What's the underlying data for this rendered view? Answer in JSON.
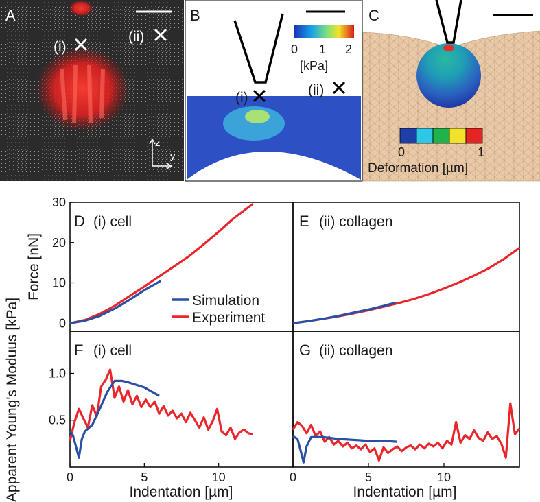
{
  "figure": {
    "panel_letters": [
      "A",
      "B",
      "C",
      "D",
      "E",
      "F",
      "G"
    ],
    "markers": {
      "i": "(i)",
      "ii": "(ii)"
    },
    "panel_a": {
      "axis_z": "z",
      "axis_y": "y"
    },
    "panel_b": {
      "colorbar_ticks": [
        "0",
        "1",
        "2"
      ],
      "colorbar_unit": "[kPa]"
    },
    "panel_c": {
      "colorbar_ticks": [
        "0",
        "1"
      ],
      "colorbar_label": "Deformation [µm]"
    }
  },
  "colors": {
    "simulation": "#2a4fa3",
    "experiment": "#e8262b",
    "cell_red": "#ff2a2a",
    "gel": "#e9c9a6"
  },
  "chart_data": [
    {
      "id": "D",
      "type": "line",
      "title": "(i) cell",
      "xlabel": "",
      "ylabel": "Force [nN]",
      "xlim": [
        0,
        15
      ],
      "ylim": [
        -2,
        30
      ],
      "xticks": [],
      "yticks": [
        0,
        10,
        20,
        30
      ],
      "legend": {
        "placement": "lower-right",
        "entries": [
          "Simulation",
          "Experiment"
        ]
      },
      "series": [
        {
          "name": "Simulation",
          "x": [
            0,
            1,
            2,
            3,
            4,
            5,
            6.1
          ],
          "y": [
            0,
            0.6,
            1.8,
            3.6,
            5.8,
            8.2,
            10.5
          ]
        },
        {
          "name": "Experiment",
          "x": [
            0,
            1,
            2,
            3,
            4,
            5,
            6,
            7,
            8,
            9,
            10,
            11,
            12.3
          ],
          "y": [
            0,
            0.8,
            2.3,
            4.3,
            6.7,
            9.1,
            11.6,
            14.1,
            16.6,
            19.6,
            22.7,
            26.0,
            29.6
          ]
        }
      ]
    },
    {
      "id": "E",
      "type": "line",
      "title": "(ii) collagen",
      "xlabel": "",
      "ylabel": "",
      "xlim": [
        0,
        15
      ],
      "ylim": [
        -2,
        30
      ],
      "xticks": [],
      "yticks": [],
      "series": [
        {
          "name": "Simulation",
          "x": [
            0,
            1,
            2,
            3,
            4,
            5,
            6,
            6.8
          ],
          "y": [
            0,
            0.5,
            1.1,
            1.8,
            2.6,
            3.4,
            4.3,
            5.1
          ]
        },
        {
          "name": "Experiment",
          "x": [
            0,
            1,
            2,
            3,
            4,
            5,
            6,
            7,
            8,
            9,
            10,
            11,
            12,
            13,
            14,
            15
          ],
          "y": [
            0,
            0.5,
            1.1,
            1.7,
            2.4,
            3.2,
            4.1,
            5.0,
            6.0,
            7.2,
            8.6,
            10.1,
            11.8,
            13.7,
            16.0,
            18.7
          ]
        }
      ]
    },
    {
      "id": "F",
      "type": "line",
      "title": "(i) cell",
      "xlabel": "Indentation [µm]",
      "ylabel": "Apparent Young's Moduus [kPa]",
      "xlim": [
        0,
        15
      ],
      "ylim": [
        0,
        1.45
      ],
      "xticks": [
        0,
        5,
        10
      ],
      "yticks": [
        0.5,
        1.0
      ],
      "series": [
        {
          "name": "Simulation",
          "x": [
            0,
            0.2,
            0.4,
            0.6,
            0.8,
            1.0,
            1.5,
            2.0,
            2.5,
            3.0,
            3.5,
            4.0,
            5.0,
            6.0
          ],
          "y": [
            0.38,
            0.34,
            0.22,
            0.1,
            0.3,
            0.38,
            0.45,
            0.62,
            0.8,
            0.92,
            0.92,
            0.9,
            0.85,
            0.76
          ]
        },
        {
          "name": "Experiment",
          "x": [
            0,
            0.3,
            0.6,
            0.9,
            1.2,
            1.5,
            1.8,
            2.1,
            2.4,
            2.7,
            3.0,
            3.3,
            3.6,
            3.9,
            4.2,
            4.5,
            4.8,
            5.1,
            5.4,
            5.7,
            6.0,
            6.3,
            6.6,
            6.9,
            7.2,
            7.5,
            7.8,
            8.1,
            8.4,
            8.7,
            9.0,
            9.3,
            9.6,
            9.9,
            10.2,
            10.5,
            10.8,
            11.1,
            11.4,
            11.7,
            12.0,
            12.3
          ],
          "y": [
            0.28,
            0.48,
            0.62,
            0.52,
            0.42,
            0.66,
            0.54,
            0.86,
            0.93,
            1.04,
            0.74,
            0.86,
            0.7,
            0.82,
            0.67,
            0.76,
            0.64,
            0.72,
            0.64,
            0.7,
            0.57,
            0.65,
            0.55,
            0.6,
            0.52,
            0.57,
            0.48,
            0.58,
            0.5,
            0.42,
            0.53,
            0.4,
            0.49,
            0.62,
            0.38,
            0.34,
            0.42,
            0.3,
            0.37,
            0.4,
            0.36,
            0.35
          ]
        }
      ]
    },
    {
      "id": "G",
      "type": "line",
      "title": "(ii) collagen",
      "xlabel": "Indentation [µm]",
      "ylabel": "",
      "xlim": [
        0,
        15
      ],
      "ylim": [
        0,
        1.45
      ],
      "xticks": [
        0,
        5,
        10
      ],
      "yticks": [],
      "series": [
        {
          "name": "Simulation",
          "x": [
            0,
            0.3,
            0.5,
            0.7,
            0.9,
            1.2,
            2,
            3,
            4,
            5,
            6,
            6.9
          ],
          "y": [
            0.33,
            0.3,
            0.18,
            0.05,
            0.22,
            0.32,
            0.32,
            0.3,
            0.29,
            0.28,
            0.28,
            0.27
          ]
        },
        {
          "name": "Experiment",
          "x": [
            0,
            0.3,
            0.6,
            0.9,
            1.2,
            1.5,
            1.8,
            2.1,
            2.4,
            2.7,
            3.0,
            3.3,
            3.6,
            3.9,
            4.2,
            4.5,
            4.8,
            5.1,
            5.4,
            5.7,
            6.0,
            6.3,
            6.6,
            6.9,
            7.2,
            7.5,
            7.8,
            8.1,
            8.4,
            8.7,
            9.0,
            9.3,
            9.6,
            9.9,
            10.2,
            10.5,
            10.8,
            11.1,
            11.4,
            11.7,
            12.0,
            12.3,
            12.6,
            12.9,
            13.2,
            13.5,
            13.8,
            14.1,
            14.4,
            14.7,
            15.0
          ],
          "y": [
            0.4,
            0.48,
            0.44,
            0.36,
            0.45,
            0.33,
            0.38,
            0.27,
            0.32,
            0.24,
            0.28,
            0.22,
            0.26,
            0.2,
            0.23,
            0.19,
            0.24,
            0.16,
            0.2,
            0.07,
            0.21,
            0.15,
            0.19,
            0.22,
            0.17,
            0.21,
            0.23,
            0.19,
            0.24,
            0.2,
            0.25,
            0.22,
            0.26,
            0.2,
            0.28,
            0.24,
            0.48,
            0.26,
            0.34,
            0.3,
            0.39,
            0.31,
            0.28,
            0.37,
            0.3,
            0.33,
            0.25,
            0.1,
            0.68,
            0.35,
            0.41
          ]
        }
      ]
    }
  ]
}
